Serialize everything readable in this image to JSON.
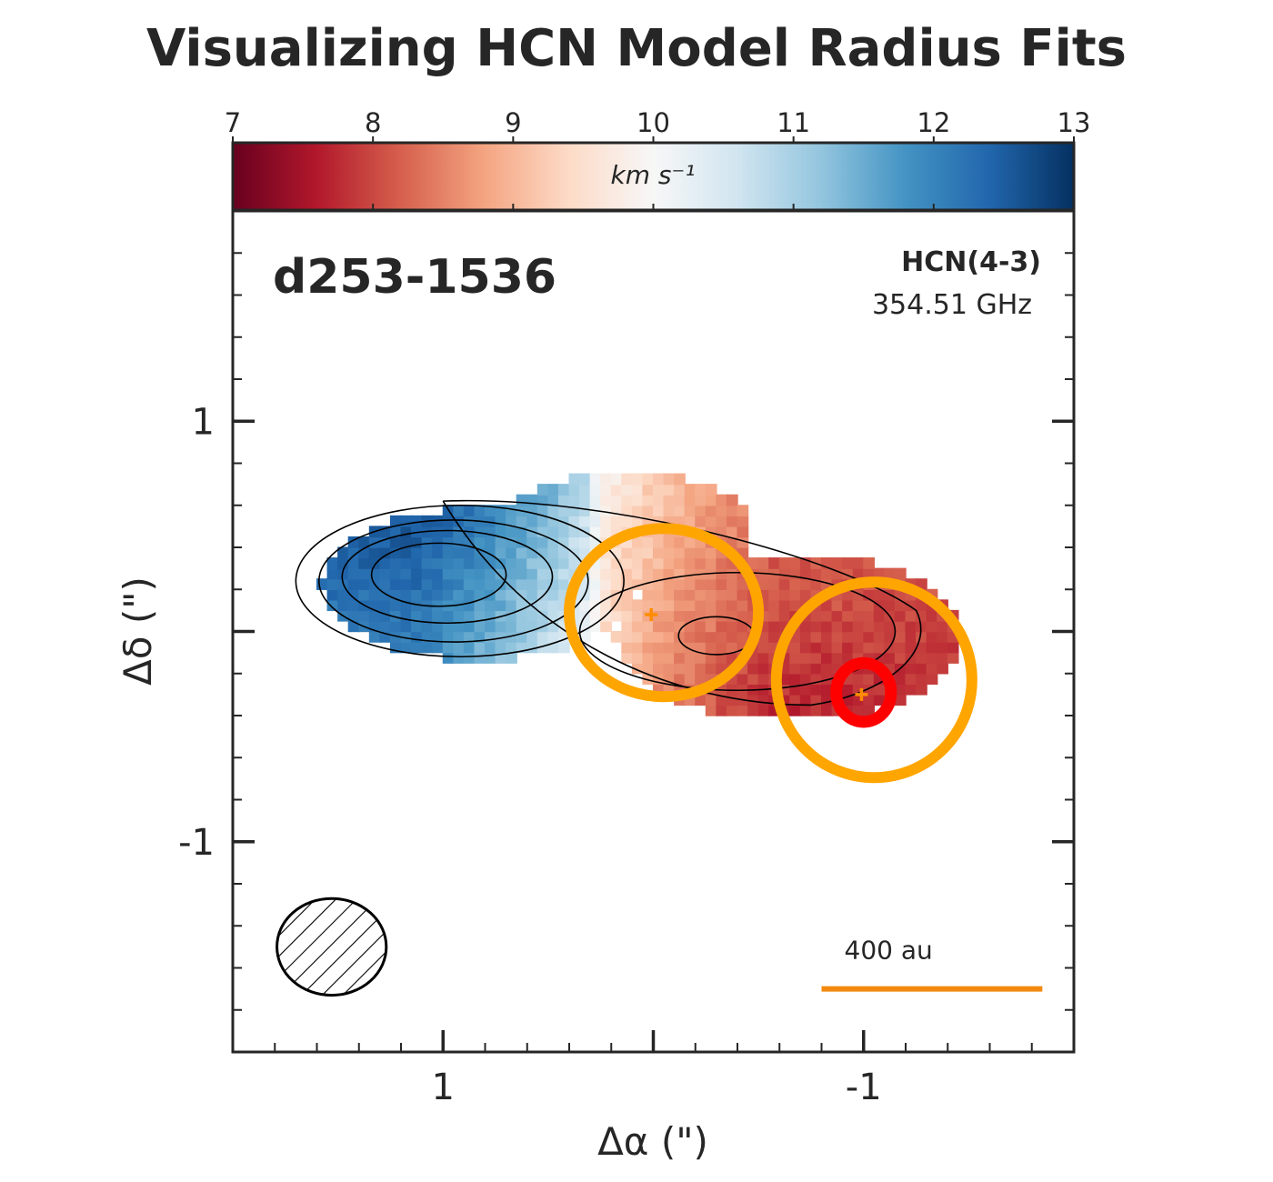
{
  "chart_data": {
    "type": "heatmap",
    "title": "Visualizing HCN Model Radius Fits",
    "source_label": "d253-1536",
    "line_name": "HCN(4-3)",
    "frequency": "354.51 GHz",
    "xlabel": "Δα (\")",
    "ylabel": "Δδ (\")",
    "x_ticks": [
      1,
      -1
    ],
    "x_tick_labels": [
      "1",
      "-1"
    ],
    "y_ticks": [
      1,
      -1
    ],
    "y_tick_labels": [
      "1",
      "-1"
    ],
    "xlim": [
      2.0,
      -2.0
    ],
    "ylim": [
      -2.0,
      2.0
    ],
    "x_inverted": true,
    "colorbar": {
      "label": "km s⁻¹",
      "min": 7,
      "max": 13,
      "ticks": [
        7,
        8,
        9,
        10,
        11,
        12,
        13
      ],
      "tick_labels": [
        "7",
        "8",
        "9",
        "10",
        "11",
        "12",
        "13"
      ],
      "colormap": "RdBu",
      "placement": "top"
    },
    "velocity_components": [
      {
        "description": "blueshifted lobe",
        "center": [
          1.15,
          0.2
        ],
        "velocity_kms": 12.3
      },
      {
        "description": "systemic",
        "center": [
          0.25,
          0.4
        ],
        "velocity_kms": 10.0
      },
      {
        "description": "redshifted lobe",
        "center": [
          -0.55,
          -0.1
        ],
        "velocity_kms": 8.1
      }
    ],
    "model_fits": [
      {
        "center": [
          -0.05,
          0.09
        ],
        "width": 0.9,
        "height": 0.8,
        "angle_deg": 0,
        "color": "#ffa500"
      },
      {
        "center": [
          -1.05,
          -0.23
        ],
        "width": 0.93,
        "height": 0.93,
        "angle_deg": 0,
        "color": "#ffa500"
      },
      {
        "center": [
          -1.0,
          -0.29
        ],
        "width": 0.26,
        "height": 0.28,
        "angle_deg": 0,
        "color": "#ff0000"
      }
    ],
    "source_markers": [
      {
        "x": 0.01,
        "y": 0.08,
        "color": "#ff8c00"
      },
      {
        "x": -0.99,
        "y": -0.3,
        "color": "#ff8c00"
      }
    ],
    "beam": {
      "center": [
        1.53,
        -1.5
      ],
      "width_arcsec": 0.52,
      "height_arcsec": 0.46,
      "hatch": "//"
    },
    "scale_bar": {
      "label": "400 au",
      "x_start": -0.8,
      "x_end": -1.85,
      "y": -1.7,
      "color": "#f28a0f"
    },
    "grid": false
  }
}
